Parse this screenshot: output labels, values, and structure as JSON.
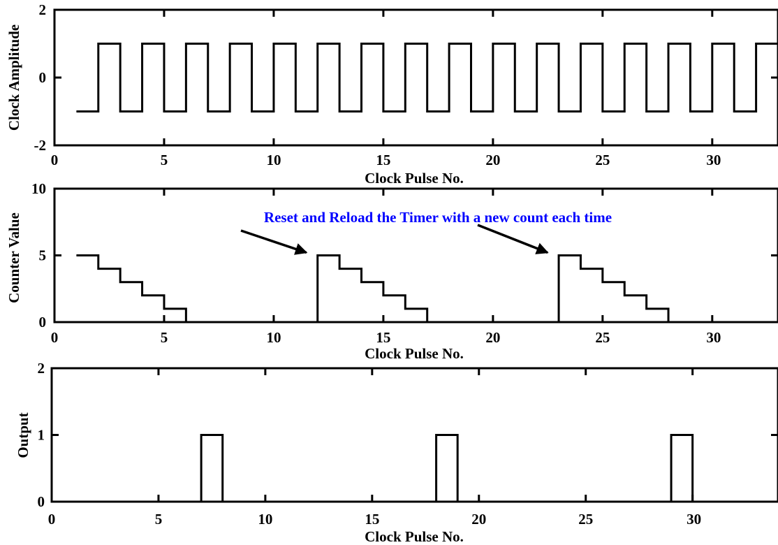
{
  "annotation": "Reset and Reload the Timer with a new count each time",
  "colors": {
    "line": "#000000",
    "annotation": "#0000ff",
    "background": "#ffffff"
  },
  "chart_data": [
    {
      "type": "line",
      "step": true,
      "title": "",
      "xlabel": "Clock Pulse No.",
      "ylabel": "Clock Amplitude",
      "xlim": [
        0,
        33
      ],
      "ylim": [
        -2,
        2
      ],
      "xticks": [
        0,
        5,
        10,
        15,
        20,
        25,
        30
      ],
      "yticks": [
        -2,
        0,
        2
      ],
      "xtick_labels": [
        "0",
        "5",
        "10",
        "15",
        "20",
        "25",
        "30"
      ],
      "ytick_labels": [
        "-2",
        "0",
        "2"
      ],
      "grid": false,
      "series": [
        {
          "x": [
            1,
            2,
            3,
            4,
            5,
            6,
            7,
            8,
            9,
            10,
            11,
            12,
            13,
            14,
            15,
            16,
            17,
            18,
            19,
            20,
            21,
            22,
            23,
            24,
            25,
            26,
            27,
            28,
            29,
            30,
            31,
            32,
            33
          ],
          "values": [
            -1,
            1,
            -1,
            1,
            -1,
            1,
            -1,
            1,
            -1,
            1,
            -1,
            1,
            -1,
            1,
            -1,
            1,
            -1,
            1,
            -1,
            1,
            -1,
            1,
            -1,
            1,
            -1,
            1,
            -1,
            1,
            -1,
            1,
            -1,
            1,
            -1
          ]
        }
      ]
    },
    {
      "type": "line",
      "step": true,
      "title": "",
      "xlabel": "Clock Pulse No.",
      "ylabel": "Counter Value",
      "xlim": [
        0,
        33
      ],
      "ylim": [
        0,
        10
      ],
      "xticks": [
        0,
        5,
        10,
        15,
        20,
        25,
        30
      ],
      "yticks": [
        0,
        5,
        10
      ],
      "xtick_labels": [
        "0",
        "5",
        "10",
        "15",
        "20",
        "25",
        "30"
      ],
      "ytick_labels": [
        "0",
        "5",
        "10"
      ],
      "grid": false,
      "series": [
        {
          "x": [
            1,
            2,
            3,
            4,
            5,
            6,
            7,
            8,
            9,
            10,
            11,
            12,
            13,
            14,
            15,
            16,
            17,
            18,
            19,
            20,
            21,
            22,
            23,
            24,
            25,
            26,
            27,
            28,
            29,
            30,
            31,
            32,
            33
          ],
          "values": [
            5,
            4,
            3,
            2,
            1,
            0,
            0,
            0,
            0,
            0,
            0,
            5,
            4,
            3,
            2,
            1,
            0,
            0,
            0,
            0,
            0,
            0,
            5,
            4,
            3,
            2,
            1,
            0,
            0,
            0,
            0,
            0,
            0
          ]
        }
      ],
      "annotation_arrows": [
        {
          "target_x": 12,
          "target_y": 5
        },
        {
          "target_x": 23,
          "target_y": 5
        }
      ]
    },
    {
      "type": "line",
      "step": true,
      "title": "",
      "xlabel": "Clock Pulse No.",
      "ylabel": "Output",
      "xlim": [
        0,
        34
      ],
      "ylim": [
        0,
        2
      ],
      "xticks": [
        0,
        5,
        10,
        15,
        20,
        25,
        30
      ],
      "yticks": [
        0,
        1,
        2
      ],
      "xtick_labels": [
        "0",
        "5",
        "10",
        "15",
        "20",
        "25",
        "30"
      ],
      "ytick_labels": [
        "0",
        "1",
        "2"
      ],
      "grid": false,
      "series": [
        {
          "x": [
            1,
            2,
            3,
            4,
            5,
            6,
            7,
            8,
            9,
            10,
            11,
            12,
            13,
            14,
            15,
            16,
            17,
            18,
            19,
            20,
            21,
            22,
            23,
            24,
            25,
            26,
            27,
            28,
            29,
            30,
            31,
            32,
            33,
            34
          ],
          "values": [
            0,
            0,
            0,
            0,
            0,
            0,
            1,
            0,
            0,
            0,
            0,
            0,
            0,
            0,
            0,
            0,
            0,
            1,
            0,
            0,
            0,
            0,
            0,
            0,
            0,
            0,
            0,
            0,
            1,
            0,
            0,
            0,
            0,
            0
          ]
        }
      ]
    }
  ]
}
